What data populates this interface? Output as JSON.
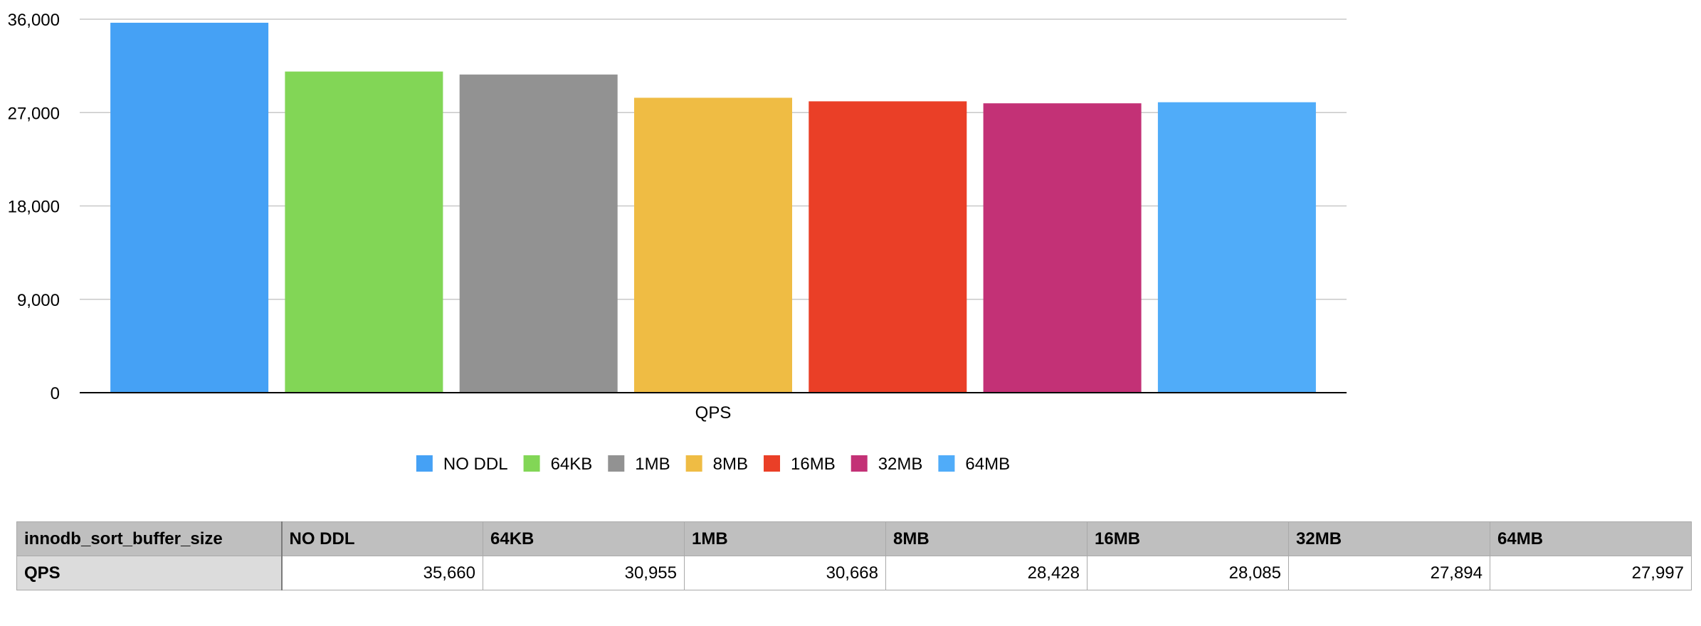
{
  "chart_data": {
    "type": "bar",
    "title": "",
    "xlabel": "QPS",
    "ylabel": "",
    "categories": [
      "QPS"
    ],
    "ylim": [
      0,
      36000
    ],
    "yticks": [
      0,
      9000,
      18000,
      27000,
      36000
    ],
    "ytick_labels": [
      "0",
      "9,000",
      "18,000",
      "27,000",
      "36,000"
    ],
    "grid": true,
    "legend_position": "bottom",
    "series": [
      {
        "name": "NO DDL",
        "values": [
          35660
        ],
        "color": "#45a1f5"
      },
      {
        "name": "64KB",
        "values": [
          30955
        ],
        "color": "#82d656"
      },
      {
        "name": "1MB",
        "values": [
          30668
        ],
        "color": "#929292"
      },
      {
        "name": "8MB",
        "values": [
          28428
        ],
        "color": "#efbc44"
      },
      {
        "name": "16MB",
        "values": [
          28085
        ],
        "color": "#ea3f27"
      },
      {
        "name": "32MB",
        "values": [
          27894
        ],
        "color": "#c33176"
      },
      {
        "name": "64MB",
        "values": [
          27997
        ],
        "color": "#50acf9"
      }
    ]
  },
  "table": {
    "header_label": "innodb_sort_buffer_size",
    "row_label": "QPS",
    "columns": [
      "NO DDL",
      "64KB",
      "1MB",
      "8MB",
      "16MB",
      "32MB",
      "64MB"
    ],
    "values": [
      "35,660",
      "30,955",
      "30,668",
      "28,428",
      "28,085",
      "27,894",
      "27,997"
    ]
  }
}
